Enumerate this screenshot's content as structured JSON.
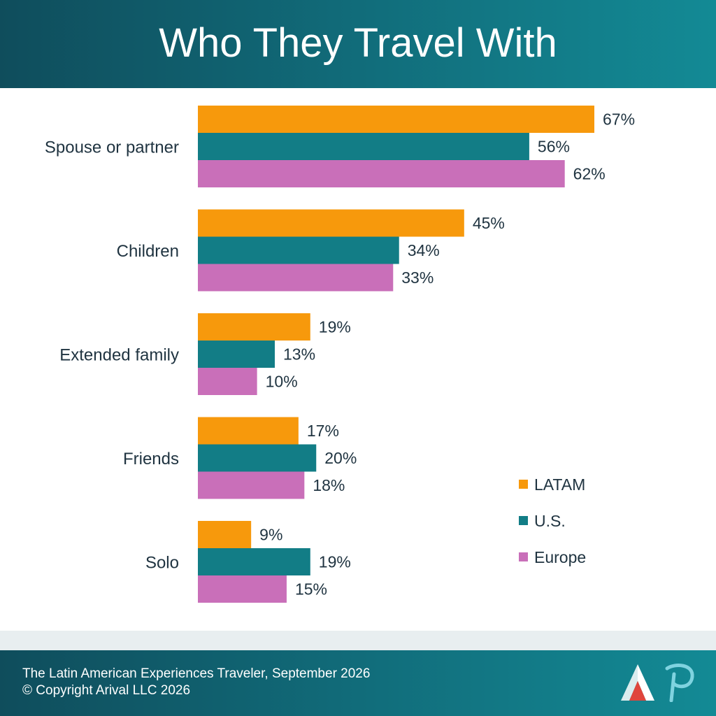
{
  "title": "Who They Travel With",
  "chart_data": {
    "type": "bar",
    "orientation": "horizontal",
    "categories": [
      "Spouse or partner",
      "Children",
      "Extended family",
      "Friends",
      "Solo"
    ],
    "series": [
      {
        "name": "LATAM",
        "color": "#f7990c",
        "values": [
          67,
          45,
          19,
          17,
          9
        ]
      },
      {
        "name": "U.S.",
        "color": "#127d86",
        "values": [
          56,
          34,
          13,
          20,
          19
        ]
      },
      {
        "name": "Europe",
        "color": "#c96fb9",
        "values": [
          62,
          33,
          10,
          18,
          15
        ]
      }
    ],
    "value_suffix": "%",
    "xlim": [
      0,
      100
    ],
    "grid": false,
    "legend": "bottom-right",
    "title": "Who They Travel With"
  },
  "footer": {
    "line1": "The Latin American Experiences Traveler, September 2026",
    "line2": "© Copyright Arival LLC 2026"
  },
  "colors": {
    "header": "#116c7a",
    "text_dark": "#1f3340",
    "logo_red": "#e0453c"
  }
}
